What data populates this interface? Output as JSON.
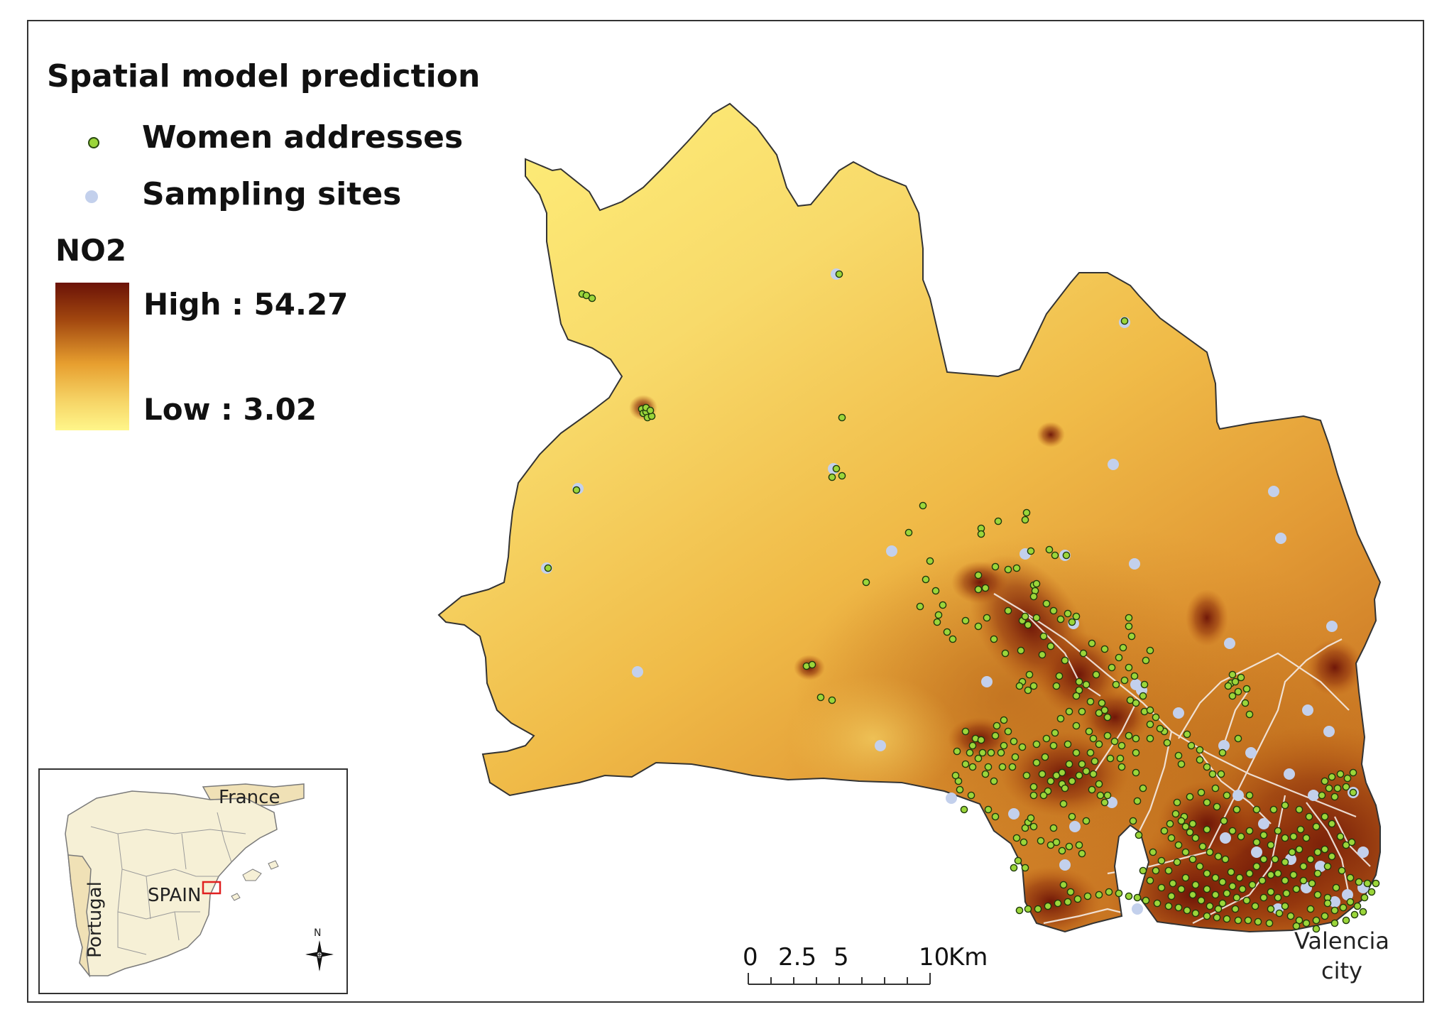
{
  "legend": {
    "title": "Spatial model prediction",
    "women_label": "Women addresses",
    "sampling_label": "Sampling sites",
    "women_color": "#9bd63a",
    "sampling_color": "#c3d0ec"
  },
  "no2": {
    "title": "NO2",
    "high_label": "High : 54.27",
    "low_label": "Low : 3.02",
    "high_value": 54.27,
    "low_value": 3.02,
    "ramp_colors": [
      "#6b1207",
      "#a1460f",
      "#e79f2f",
      "#f6d466",
      "#fff68a"
    ]
  },
  "scale_bar": {
    "ticks": [
      "0",
      "2.5",
      "5",
      "10"
    ],
    "unit": "Km"
  },
  "place_label": "Valencia city",
  "inset": {
    "labels": {
      "france": "France",
      "portugal": "Portugal",
      "spain": "SPAIN"
    },
    "north": "N",
    "highlight_color": "#e02020"
  }
}
